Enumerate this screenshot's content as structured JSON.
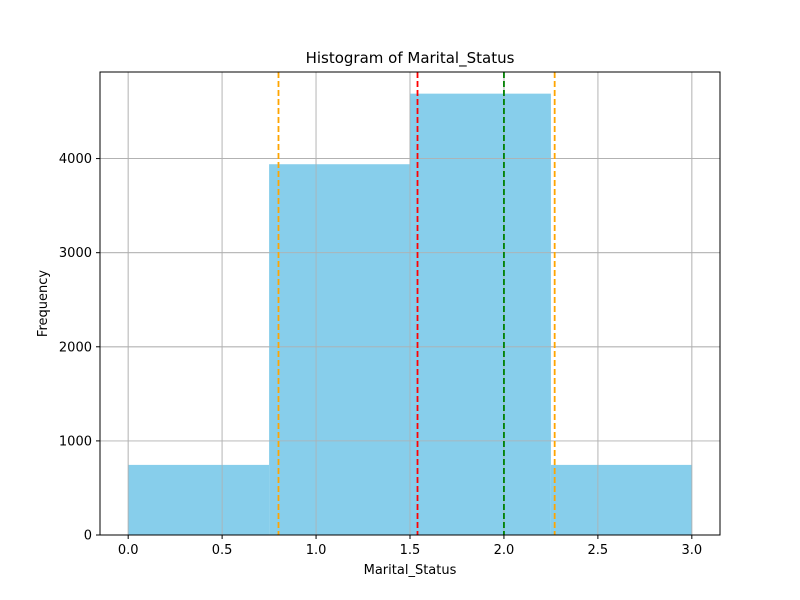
{
  "chart_data": {
    "type": "bar",
    "title": "Histogram of Marital_Status",
    "xlabel": "Marital_Status",
    "ylabel": "Frequency",
    "xlim": [
      -0.15,
      3.15
    ],
    "ylim": [
      0,
      4920
    ],
    "grid": true,
    "bins": [
      {
        "x0": 0.0,
        "x1": 0.75,
        "value": 745
      },
      {
        "x0": 0.75,
        "x1": 1.5,
        "value": 3940
      },
      {
        "x0": 1.5,
        "x1": 2.25,
        "value": 4690
      },
      {
        "x0": 2.25,
        "x1": 3.0,
        "value": 745
      }
    ],
    "reference_lines": [
      {
        "x": 0.8,
        "color": "#ffa500",
        "style": "dashed"
      },
      {
        "x": 1.54,
        "color": "#ff0000",
        "style": "dashed"
      },
      {
        "x": 2.0,
        "color": "#008000",
        "style": "dashed"
      },
      {
        "x": 2.27,
        "color": "#ffa500",
        "style": "dashed"
      }
    ],
    "xticks": [
      "0.0",
      "0.5",
      "1.0",
      "1.5",
      "2.0",
      "2.5",
      "3.0"
    ],
    "yticks": [
      "0",
      "1000",
      "2000",
      "3000",
      "4000"
    ],
    "bar_color": "#87ceeb"
  }
}
